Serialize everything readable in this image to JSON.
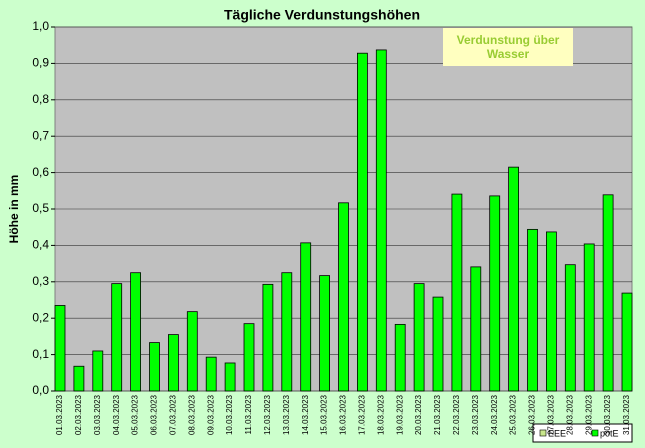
{
  "chart_data": {
    "type": "bar",
    "title": "Tägliche Verdunstungshöhen",
    "y_label": "Höhe in mm",
    "annotation": "Verdunstung über Wasser",
    "categories": [
      "01.03.2023",
      "02.03.2023",
      "03.03.2023",
      "04.03.2023",
      "05.03.2023",
      "06.03.2023",
      "07.03.2023",
      "08.03.2023",
      "09.03.2023",
      "10.03.2023",
      "11.03.2023",
      "12.03.2023",
      "13.03.2023",
      "14.03.2023",
      "15.03.2023",
      "16.03.2023",
      "17.03.2023",
      "18.03.2023",
      "19.03.2023",
      "20.03.2023",
      "21.03.2023",
      "22.03.2023",
      "23.03.2023",
      "24.03.2023",
      "25.03.2023",
      "26.03.2023",
      "27.03.2023",
      "28.03.2023",
      "29.03.2023",
      "30.03.2023",
      "31.03.2023"
    ],
    "series": [
      {
        "name": "EEE",
        "color": "#c8e68c",
        "values": [
          null,
          null,
          null,
          null,
          null,
          null,
          null,
          null,
          null,
          null,
          null,
          null,
          null,
          null,
          null,
          null,
          null,
          null,
          null,
          null,
          null,
          null,
          null,
          null,
          null,
          null,
          null,
          null,
          null,
          null,
          null
        ]
      },
      {
        "name": "potE",
        "color": "#00ff00",
        "values": [
          0.235,
          0.068,
          0.11,
          0.295,
          0.325,
          0.133,
          0.155,
          0.218,
          0.093,
          0.077,
          0.185,
          0.293,
          0.325,
          0.407,
          0.317,
          0.517,
          0.928,
          0.937,
          0.183,
          0.295,
          0.258,
          0.541,
          0.341,
          0.536,
          0.615,
          0.444,
          0.437,
          0.347,
          0.404,
          0.539,
          0.269
        ]
      }
    ],
    "ylim": [
      0,
      1
    ],
    "yticks": [
      {
        "value": 0,
        "label": "0,0"
      },
      {
        "value": 0.1,
        "label": "0,1"
      },
      {
        "value": 0.2,
        "label": "0,2"
      },
      {
        "value": 0.3,
        "label": "0,3"
      },
      {
        "value": 0.4,
        "label": "0,4"
      },
      {
        "value": 0.5,
        "label": "0,5"
      },
      {
        "value": 0.6,
        "label": "0,6"
      },
      {
        "value": 0.7,
        "label": "0,7"
      },
      {
        "value": 0.8,
        "label": "0,8"
      },
      {
        "value": 0.9,
        "label": "0,9"
      },
      {
        "value": 1,
        "label": "1,0"
      }
    ],
    "grid": true,
    "legend": "bottom-right"
  }
}
